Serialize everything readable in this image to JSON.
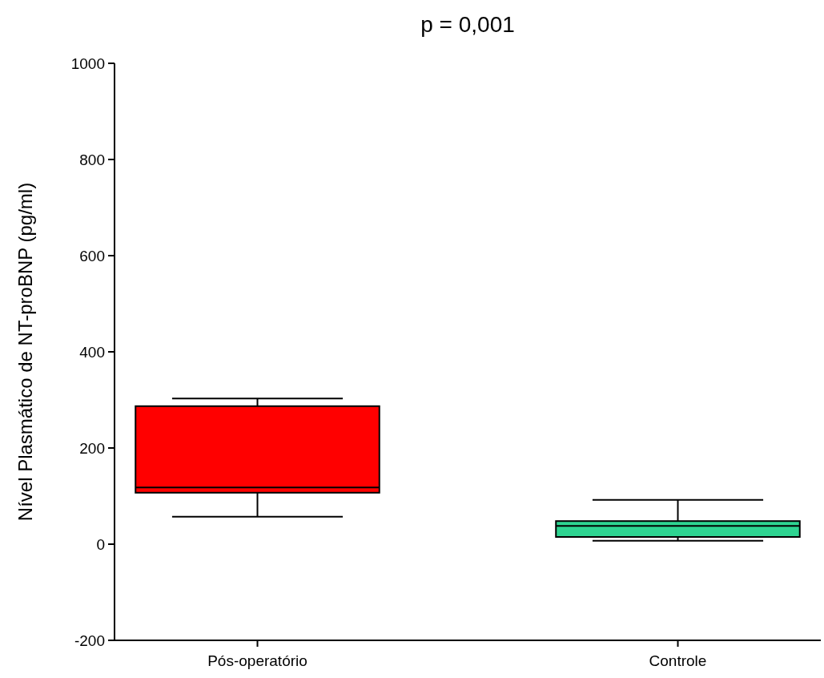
{
  "chart_data": {
    "type": "box",
    "title": "p = 0,001",
    "ylabel": "Nível Plasmático de NT-proBNP (pg/ml)",
    "categories": [
      "Pós-operatório",
      "Controle"
    ],
    "colors": [
      "#ff0000",
      "#2ed491"
    ],
    "boxes": [
      {
        "low": 57,
        "q1": 107,
        "median": 118,
        "q3": 287,
        "high": 303
      },
      {
        "low": 7,
        "q1": 15,
        "median": 38,
        "q3": 48,
        "high": 92
      }
    ],
    "ylim": [
      -200,
      1000
    ],
    "yticks": [
      -200,
      0,
      200,
      400,
      600,
      800,
      1000
    ],
    "grid": false
  }
}
